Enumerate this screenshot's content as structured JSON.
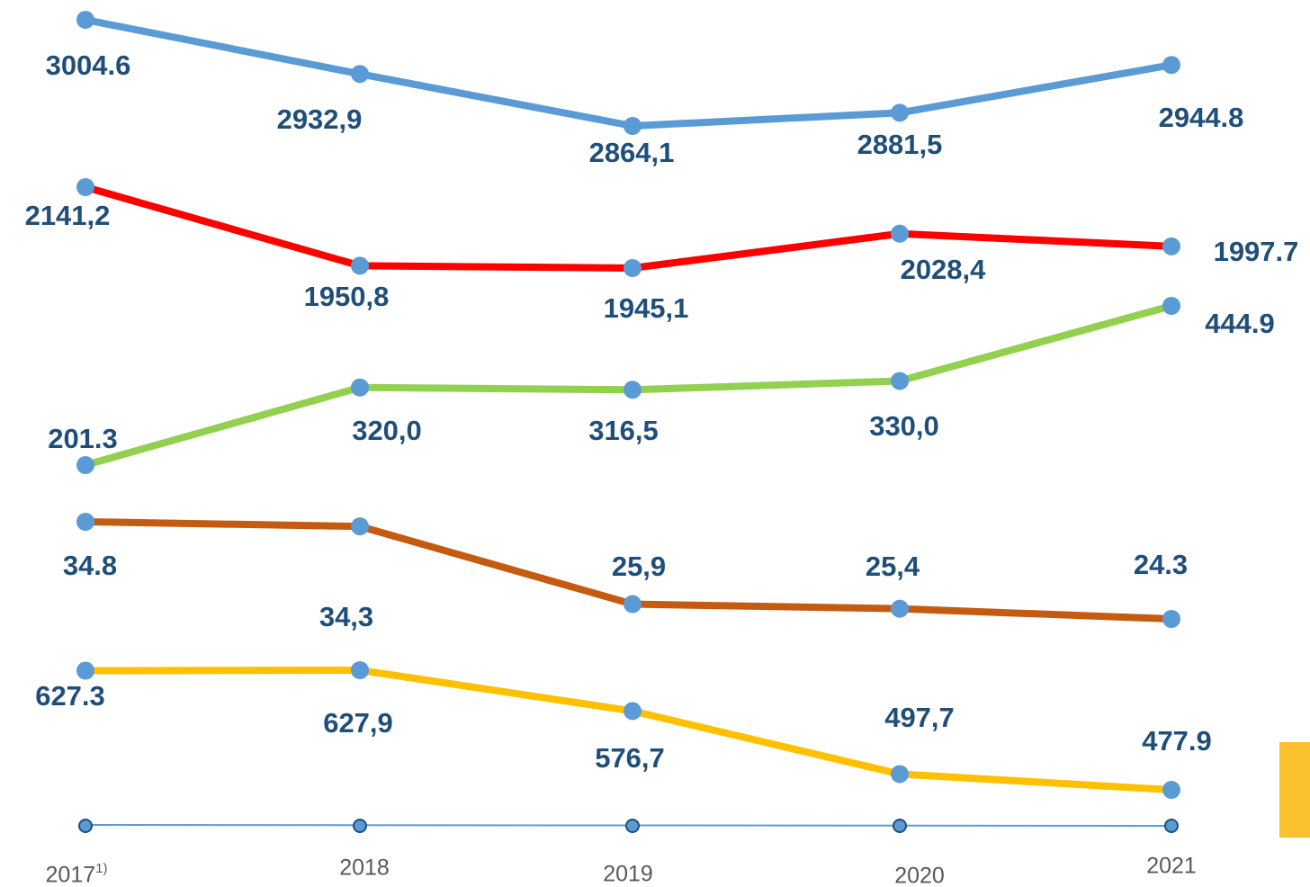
{
  "chart_data": {
    "type": "line",
    "categories": [
      "2017",
      "2018",
      "2019",
      "2020",
      "2021"
    ],
    "first_category_note": "1)",
    "marker_color": "#5b9bd5",
    "series": [
      {
        "color": "#5b9bd5",
        "values": [
          3004.6,
          2932.9,
          2864.1,
          2881.5,
          2944.8
        ],
        "value_labels": [
          "3004.6",
          "2932,9",
          "2864,1",
          "2881,5",
          "2944.8"
        ]
      },
      {
        "color": "#ff0000",
        "values": [
          2141.2,
          1950.8,
          1945.1,
          2028.4,
          1997.7
        ],
        "value_labels": [
          "2141,2",
          "1950,8",
          "1945,1",
          "2028,4",
          "1997.7"
        ]
      },
      {
        "color": "#92d050",
        "values": [
          201.3,
          320.0,
          316.5,
          330.0,
          444.9
        ],
        "value_labels": [
          "201.3",
          "320,0",
          "316,5",
          "330,0",
          "444.9"
        ]
      },
      {
        "color": "#c55a11",
        "values": [
          34.8,
          34.3,
          25.9,
          25.4,
          24.3
        ],
        "value_labels": [
          "34.8",
          "34,3",
          "25,9",
          "25,4",
          "24.3"
        ]
      },
      {
        "color": "#ffc000",
        "values": [
          627.3,
          627.9,
          576.7,
          497.7,
          477.9
        ],
        "value_labels": [
          "627.3",
          "627,9",
          "576,7",
          "497,7",
          "477.9"
        ]
      }
    ]
  }
}
